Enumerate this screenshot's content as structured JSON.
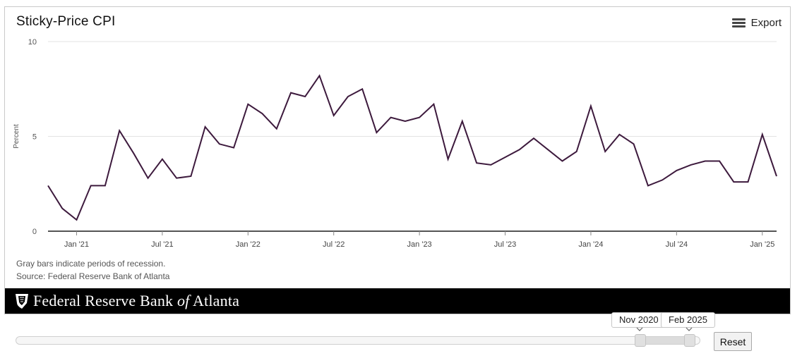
{
  "header": {
    "title": "Sticky-Price CPI",
    "export_label": "Export"
  },
  "notes": {
    "recession": "Gray bars indicate periods of recession.",
    "source": "Source: Federal Reserve Bank of Atlanta"
  },
  "banner": {
    "text_prefix": "Federal Reserve Bank ",
    "text_of": "of",
    "text_suffix": " Atlanta"
  },
  "range_selector": {
    "start_label": "Nov 2020",
    "end_label": "Feb 2025",
    "reset_label": "Reset"
  },
  "colors": {
    "series": "#3d1a3d",
    "grid": "#e3e3e3",
    "axis": "#555555",
    "banner": "#000000"
  },
  "chart_data": {
    "type": "line",
    "title": "Sticky-Price CPI",
    "ylabel": "Percent",
    "xlabel": "",
    "ylim": [
      0,
      10
    ],
    "y_ticks": [
      0,
      5,
      10
    ],
    "x_ticks": [
      "2021-01",
      "2021-07",
      "2022-01",
      "2022-07",
      "2023-01",
      "2023-07",
      "2024-01",
      "2024-07",
      "2025-01"
    ],
    "x_tick_labels": [
      "Jan '21",
      "Jul '21",
      "Jan '22",
      "Jul '22",
      "Jan '23",
      "Jul '23",
      "Jan '24",
      "Jul '24",
      "Jan '25"
    ],
    "grid": true,
    "legend": "none",
    "series": [
      {
        "x": [
          "2020-11",
          "2020-12",
          "2021-01",
          "2021-02",
          "2021-03",
          "2021-04",
          "2021-05",
          "2021-06",
          "2021-07",
          "2021-08",
          "2021-09",
          "2021-10",
          "2021-11",
          "2021-12",
          "2022-01",
          "2022-02",
          "2022-03",
          "2022-04",
          "2022-05",
          "2022-06",
          "2022-07",
          "2022-08",
          "2022-09",
          "2022-10",
          "2022-11",
          "2022-12",
          "2023-01",
          "2023-02",
          "2023-03",
          "2023-04",
          "2023-05",
          "2023-06",
          "2023-07",
          "2023-08",
          "2023-09",
          "2023-10",
          "2023-11",
          "2023-12",
          "2024-01",
          "2024-02",
          "2024-03",
          "2024-04",
          "2024-05",
          "2024-06",
          "2024-07",
          "2024-08",
          "2024-09",
          "2024-10",
          "2024-11",
          "2024-12",
          "2025-01",
          "2025-02"
        ],
        "values": [
          2.4,
          1.2,
          0.6,
          2.4,
          2.4,
          5.3,
          4.1,
          2.8,
          3.8,
          2.8,
          2.9,
          5.5,
          4.6,
          4.4,
          6.7,
          6.2,
          5.4,
          7.3,
          7.1,
          8.2,
          6.1,
          7.1,
          7.5,
          5.2,
          6.0,
          5.8,
          6.0,
          6.7,
          3.8,
          5.8,
          3.6,
          3.5,
          3.9,
          4.3,
          4.9,
          4.3,
          3.7,
          4.2,
          6.6,
          4.2,
          5.1,
          4.6,
          2.4,
          2.7,
          3.2,
          3.5,
          3.7,
          3.7,
          2.6,
          2.6,
          5.1,
          2.9
        ]
      }
    ]
  }
}
